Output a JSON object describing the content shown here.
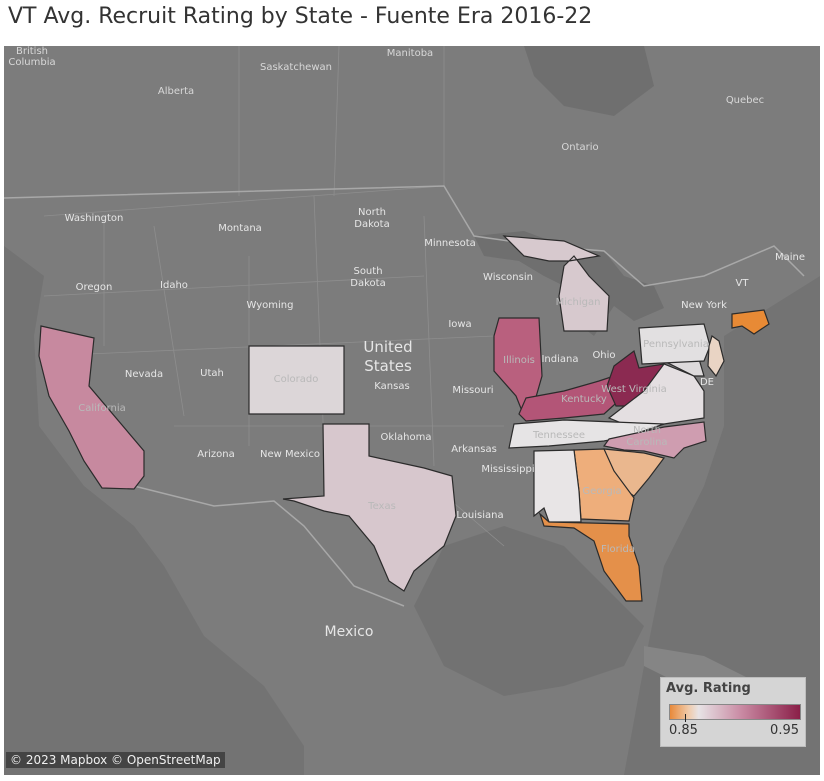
{
  "title": "VT Avg. Recruit Rating by State - Fuente Era 2016-22",
  "attribution": "© 2023 Mapbox © OpenStreetMap",
  "legend": {
    "title": "Avg. Rating",
    "min": "0.85",
    "max": "0.95"
  },
  "basemap_labels": {
    "countries": [
      "United States",
      "Mexico"
    ],
    "us_states_line1": [
      "United",
      "States"
    ],
    "canada": [
      "British Columbia",
      "Alberta",
      "Saskatchewan",
      "Manitoba",
      "Ontario",
      "Quebec"
    ],
    "british_columbia": [
      "British",
      "Columbia"
    ],
    "states": {
      "washington": "Washington",
      "oregon": "Oregon",
      "idaho": "Idaho",
      "montana": "Montana",
      "wyoming": "Wyoming",
      "nevada": "Nevada",
      "utah": "Utah",
      "arizona": "Arizona",
      "new_mexico": "New Mexico",
      "north_dakota_1": "North",
      "north_dakota_2": "Dakota",
      "south_dakota_1": "South",
      "south_dakota_2": "Dakota",
      "minnesota": "Minnesota",
      "wisconsin": "Wisconsin",
      "iowa": "Iowa",
      "kansas": "Kansas",
      "missouri": "Missouri",
      "oklahoma": "Oklahoma",
      "arkansas": "Arkansas",
      "mississippi": "Mississippi",
      "louisiana": "Louisiana",
      "indiana": "Indiana",
      "ohio": "Ohio",
      "new_york": "New York",
      "vt": "VT",
      "maine": "Maine",
      "de": "DE",
      "california": "California",
      "colorado": "Colorado",
      "texas": "Texas",
      "illinois": "Illinois",
      "michigan": "Michigan",
      "kentucky": "Kentucky",
      "tennessee": "Tennessee",
      "georgia": "Georgia",
      "florida": "Florida",
      "pennsylvania": "Pennsylvania",
      "north_carolina_1": "North",
      "north_carolina_2": "Carolina",
      "west_virginia": "West Virginia"
    }
  },
  "colors": {
    "low": "#e8893a",
    "mid": "#e7e3e5",
    "high": "#8a1f48",
    "basemap": "#7a7a7a",
    "land": "#808080",
    "water": "#6e6e6e"
  },
  "rated_states": [
    {
      "state": "California",
      "rating": 0.915
    },
    {
      "state": "Colorado",
      "rating": 0.875
    },
    {
      "state": "Texas",
      "rating": 0.885
    },
    {
      "state": "Michigan",
      "rating": 0.88
    },
    {
      "state": "Illinois",
      "rating": 0.925
    },
    {
      "state": "Kentucky",
      "rating": 0.925
    },
    {
      "state": "West Virginia",
      "rating": 0.945
    },
    {
      "state": "Virginia",
      "rating": 0.87
    },
    {
      "state": "Tennessee",
      "rating": 0.865
    },
    {
      "state": "North Carolina",
      "rating": 0.905
    },
    {
      "state": "South Carolina",
      "rating": 0.855
    },
    {
      "state": "Georgia",
      "rating": 0.858
    },
    {
      "state": "Florida",
      "rating": 0.855
    },
    {
      "state": "Alabama",
      "rating": 0.865
    },
    {
      "state": "Pennsylvania",
      "rating": 0.868
    },
    {
      "state": "New Jersey",
      "rating": 0.875
    },
    {
      "state": "Maryland",
      "rating": 0.87
    },
    {
      "state": "Massachusetts",
      "rating": 0.842
    }
  ]
}
